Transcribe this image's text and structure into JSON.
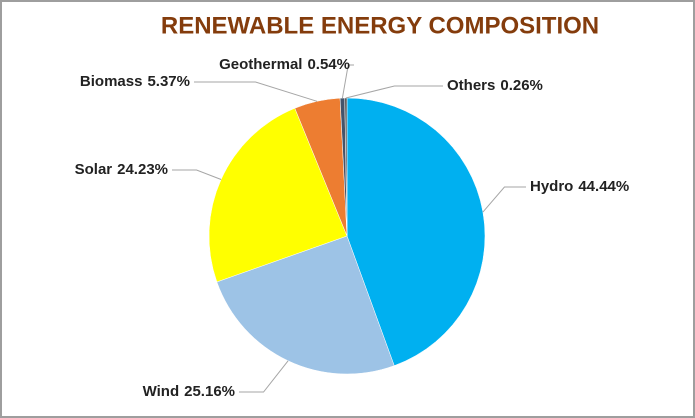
{
  "chart_data": {
    "type": "pie",
    "title": "RENEWABLE ENERGY COMPOSITION",
    "categories": [
      "Hydro",
      "Wind",
      "Solar",
      "Biomass",
      "Geothermal",
      "Others"
    ],
    "values": [
      44.44,
      25.16,
      24.23,
      5.37,
      0.54,
      0.26
    ],
    "value_labels": [
      "44.44%",
      "25.16%",
      "24.23%",
      "5.37%",
      "0.54%",
      "0.26%"
    ],
    "colors": [
      "#00b0f0",
      "#9dc3e6",
      "#ffff00",
      "#ed7d31",
      "#44546a",
      "#5a5a5a"
    ]
  }
}
